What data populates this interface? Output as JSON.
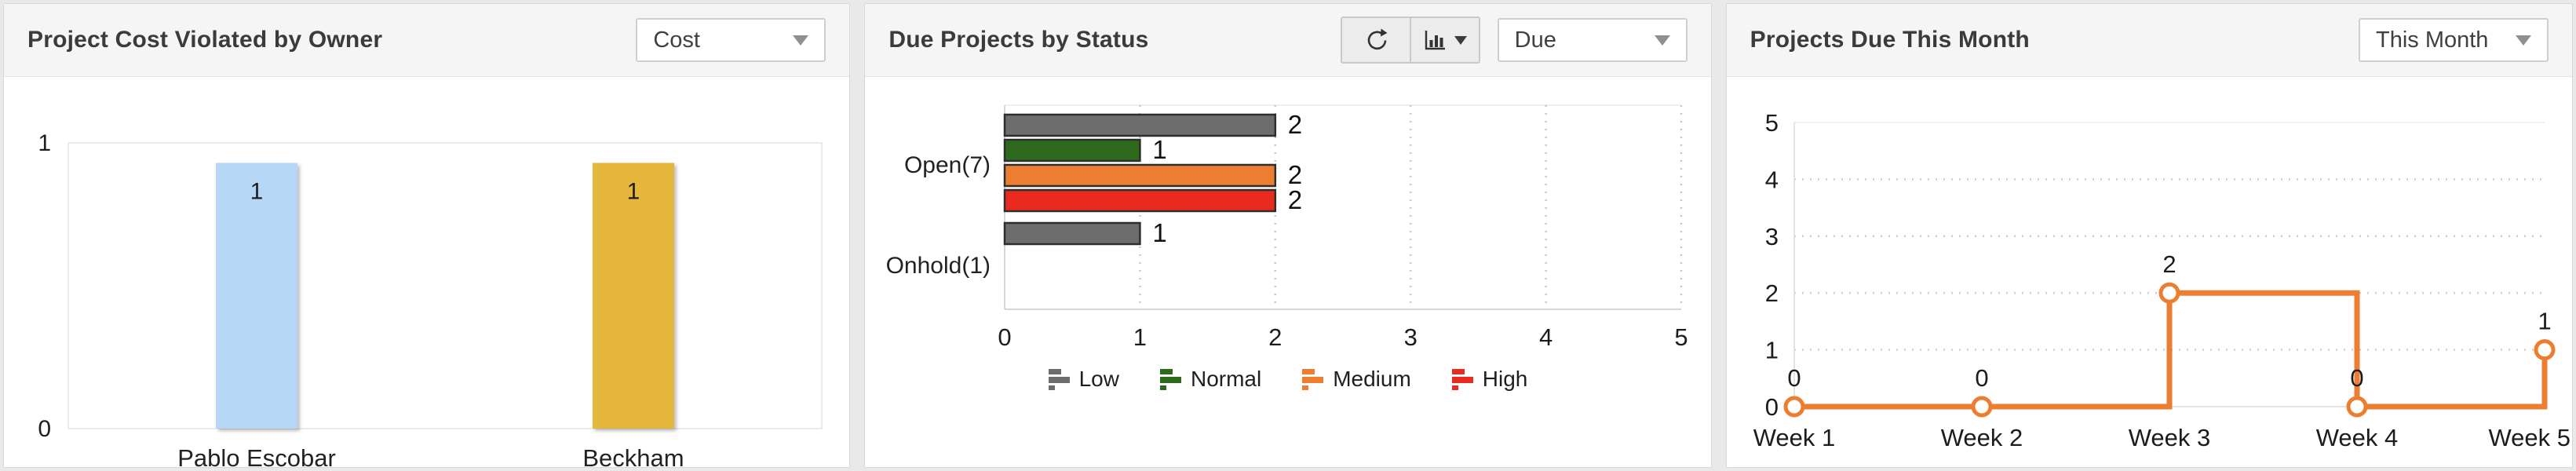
{
  "panels": [
    {
      "title": "Project Cost Violated by Owner",
      "dropdown": {
        "value": "Cost",
        "icon": "chevron-down-icon"
      }
    },
    {
      "title": "Due Projects by Status",
      "dropdown": {
        "value": "Due",
        "icon": "chevron-down-icon"
      },
      "toolbar": {
        "icons": [
          "refresh-icon",
          "bar-chart-type-icon",
          "chevron-down-icon"
        ]
      }
    },
    {
      "title": "Projects Due This Month",
      "dropdown": {
        "value": "This Month",
        "icon": "chevron-down-icon"
      }
    }
  ],
  "colors": {
    "page_background": "#e9e9e9",
    "card_header_background": "#f5f5f5",
    "title_text": "#3b3b3b",
    "axis_text": "#1c1c1c",
    "gridline": "#c9c9c9"
  },
  "chart_data": [
    {
      "id": "cost-by-owner",
      "type": "bar",
      "orientation": "vertical",
      "categories": [
        "Pablo Escobar",
        "Beckham"
      ],
      "values": [
        1,
        1
      ],
      "bar_colors": [
        "#b5d7f5",
        "#e6b73e"
      ],
      "data_labels": [
        1,
        1
      ],
      "ylim": [
        0,
        1
      ],
      "yticks": [
        0,
        1
      ],
      "grid": false,
      "title": "Project Cost Violated by Owner"
    },
    {
      "id": "due-by-status",
      "type": "bar",
      "orientation": "horizontal",
      "categories": [
        "Open(7)",
        "Onhold(1)"
      ],
      "series": [
        {
          "name": "Low",
          "color": "#6d6d6d",
          "values": [
            2,
            1
          ]
        },
        {
          "name": "Normal",
          "color": "#2d6a1c",
          "values": [
            1,
            null
          ]
        },
        {
          "name": "Medium",
          "color": "#ed7d31",
          "values": [
            2,
            null
          ]
        },
        {
          "name": "High",
          "color": "#e92a1f",
          "values": [
            2,
            null
          ]
        }
      ],
      "xlim": [
        0,
        5
      ],
      "xticks": [
        0,
        1,
        2,
        3,
        4,
        5
      ],
      "grid": true,
      "legend_position": "bottom",
      "title": "Due Projects by Status"
    },
    {
      "id": "due-this-month",
      "type": "line",
      "line_style": "step-after",
      "categories": [
        "Week 1",
        "Week 2",
        "Week 3",
        "Week 4",
        "Week 5"
      ],
      "values": [
        0,
        0,
        2,
        0,
        1
      ],
      "data_labels": [
        0,
        0,
        2,
        0,
        1
      ],
      "color": "#ed7d31",
      "marker": "open-circle",
      "ylim": [
        0,
        5
      ],
      "yticks": [
        0,
        1,
        2,
        3,
        4,
        5
      ],
      "grid": true,
      "title": "Projects Due This Month"
    }
  ]
}
